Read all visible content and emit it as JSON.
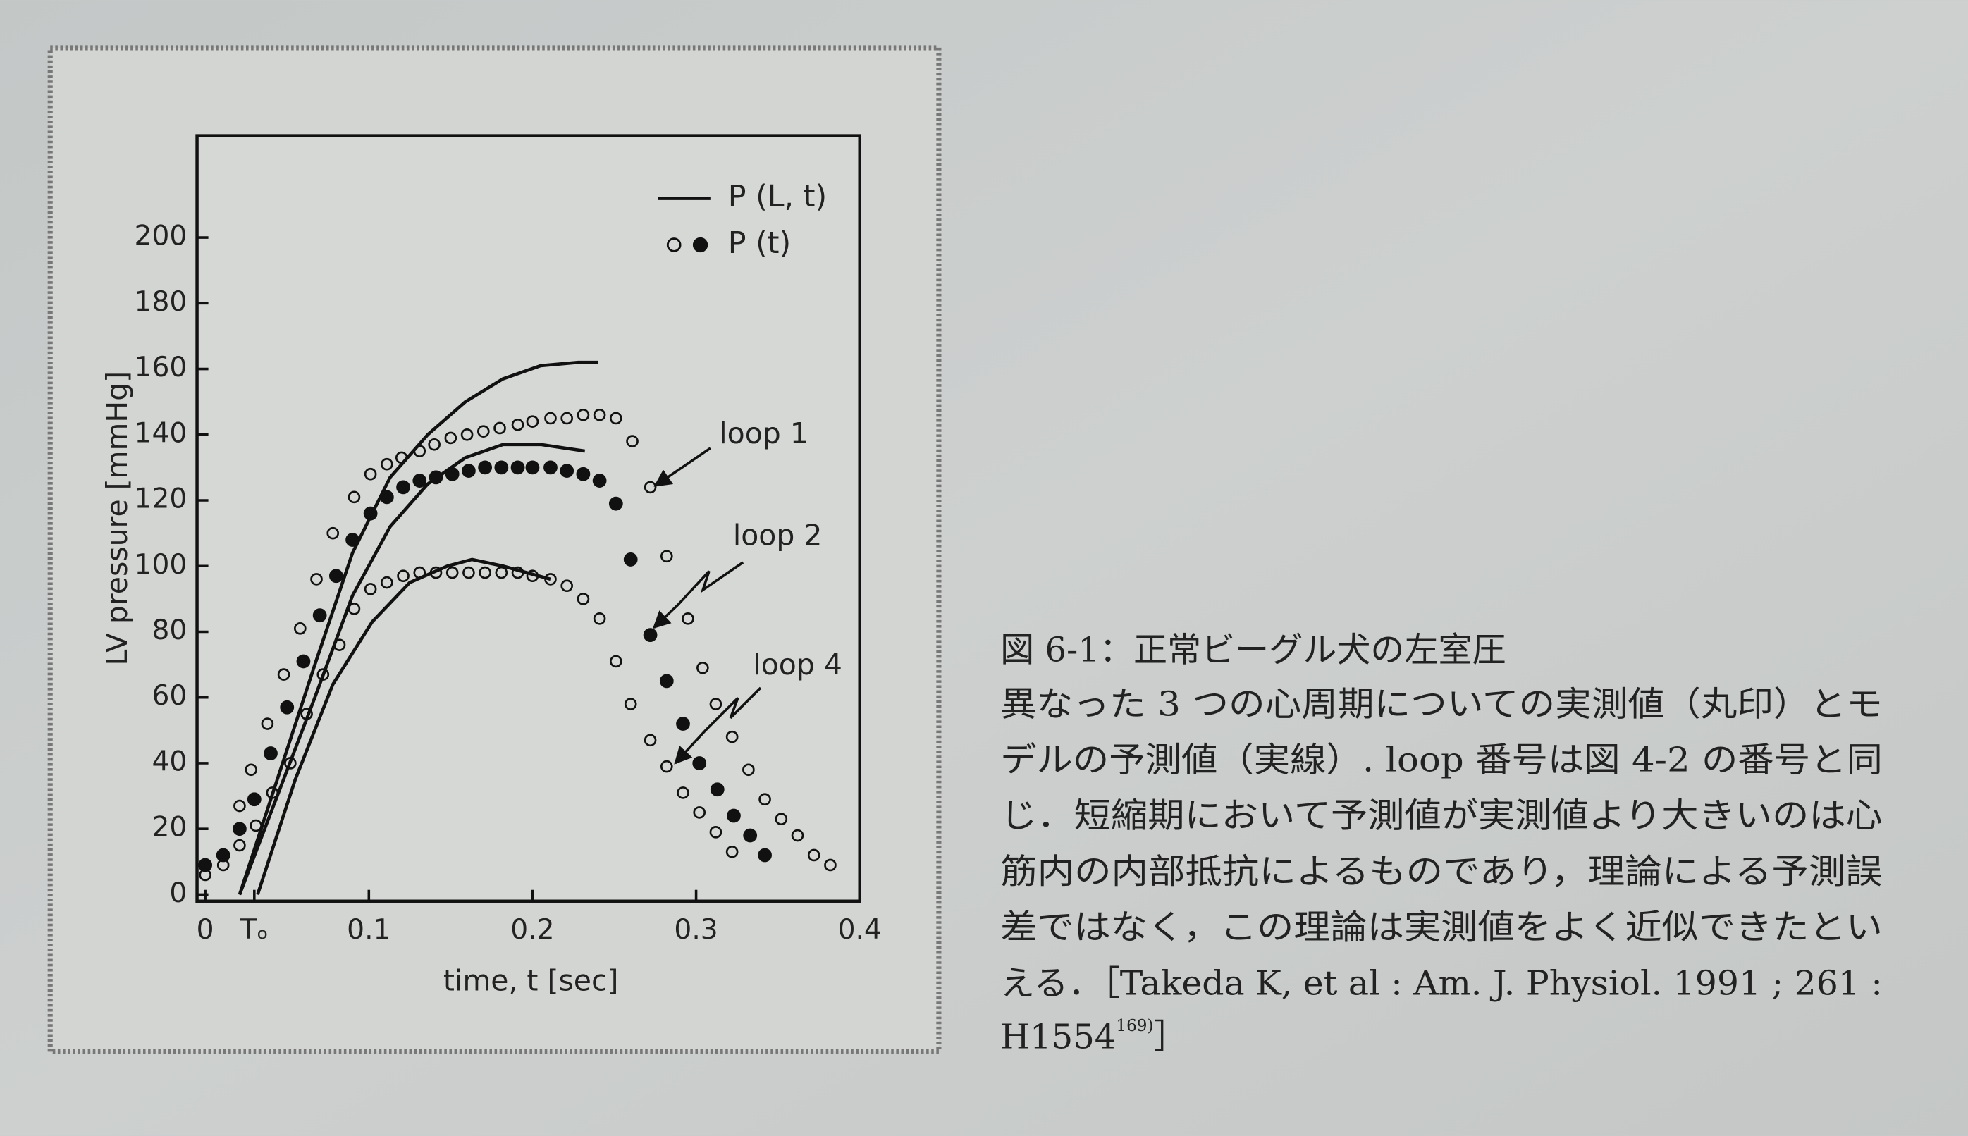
{
  "chart_data": {
    "type": "line-scatter",
    "y_label": "LV pressure [mmHg]",
    "x_label": "time, t [sec]",
    "xlim": [
      -0.005,
      0.4
    ],
    "ylim": [
      -2,
      231
    ],
    "xticks": [
      0,
      {
        "value": 0.03,
        "label": "Tₒ"
      },
      0.1,
      0.2,
      0.3,
      0.4
    ],
    "yticks": [
      0,
      20,
      40,
      60,
      80,
      100,
      120,
      140,
      160,
      180,
      200
    ],
    "color": "#111111",
    "legend": [
      {
        "label": "P (L, t)",
        "marker": "line"
      },
      {
        "label": "P (t)",
        "marker": "circles"
      }
    ],
    "annotations": [
      "loop 1",
      "loop 2",
      "loop 4"
    ],
    "lines": [
      {
        "x": [
          0.021,
          0.044,
          0.067,
          0.09,
          0.113,
          0.136,
          0.159,
          0.182,
          0.205,
          0.228,
          0.24
        ],
        "values": [
          0,
          35,
          70,
          104,
          127,
          140,
          150,
          157,
          161,
          162,
          162
        ]
      },
      {
        "x": [
          0.021,
          0.044,
          0.067,
          0.09,
          0.113,
          0.136,
          0.159,
          0.182,
          0.205,
          0.232
        ],
        "values": [
          0,
          30,
          60,
          91,
          112,
          125,
          133,
          137,
          137,
          135
        ]
      },
      {
        "x": [
          0.032,
          0.055,
          0.078,
          0.102,
          0.125,
          0.148,
          0.163,
          0.182,
          0.211
        ],
        "values": [
          0,
          35,
          64,
          83,
          95,
          100,
          102,
          100,
          96
        ]
      }
    ],
    "points": [
      {
        "style": "open",
        "x": [
          0.021,
          0.028,
          0.038,
          0.048,
          0.058,
          0.068,
          0.078,
          0.091,
          0.101,
          0.111,
          0.12,
          0.131,
          0.14,
          0.15,
          0.16,
          0.17,
          0.18,
          0.191,
          0.2,
          0.211,
          0.221,
          0.231,
          0.241,
          0.251,
          0.261,
          0.272,
          0.282,
          0.295,
          0.304,
          0.312,
          0.322,
          0.332,
          0.342,
          0.352,
          0.362,
          0.372,
          0.382
        ],
        "values": [
          27,
          38,
          52,
          67,
          81,
          96,
          110,
          121,
          128,
          131,
          133,
          135,
          137,
          139,
          140,
          141,
          142,
          143,
          144,
          145,
          145,
          146,
          146,
          145,
          138,
          124,
          103,
          84,
          69,
          58,
          48,
          38,
          29,
          23,
          18,
          12,
          9
        ]
      },
      {
        "style": "filled",
        "x": [
          0,
          0.011,
          0.021,
          0.03,
          0.04,
          0.05,
          0.06,
          0.07,
          0.08,
          0.09,
          0.101,
          0.111,
          0.121,
          0.131,
          0.141,
          0.151,
          0.161,
          0.171,
          0.181,
          0.191,
          0.2,
          0.211,
          0.221,
          0.231,
          0.241,
          0.251,
          0.26,
          0.272,
          0.282,
          0.292,
          0.302,
          0.313,
          0.323,
          0.333,
          0.342
        ],
        "values": [
          9,
          12,
          20,
          29,
          43,
          57,
          71,
          85,
          97,
          108,
          116,
          121,
          124,
          126,
          127,
          128,
          129,
          130,
          130,
          130,
          130,
          130,
          129,
          128,
          126,
          119,
          102,
          79,
          65,
          52,
          40,
          32,
          24,
          18,
          12
        ]
      },
      {
        "style": "open",
        "x": [
          0,
          0.011,
          0.021,
          0.031,
          0.041,
          0.052,
          0.062,
          0.072,
          0.082,
          0.091,
          0.101,
          0.111,
          0.121,
          0.131,
          0.141,
          0.151,
          0.161,
          0.171,
          0.181,
          0.191,
          0.2,
          0.211,
          0.221,
          0.231,
          0.241,
          0.251,
          0.26,
          0.272,
          0.282,
          0.292,
          0.302,
          0.312,
          0.322
        ],
        "values": [
          6,
          9,
          15,
          21,
          31,
          40,
          55,
          67,
          76,
          87,
          93,
          95,
          97,
          98,
          98,
          98,
          98,
          98,
          98,
          98,
          97,
          96,
          94,
          90,
          84,
          71,
          58,
          47,
          39,
          31,
          25,
          19,
          13
        ]
      }
    ]
  },
  "caption": {
    "title": "図 6-1：正常ビーグル犬の左室圧",
    "lines": [
      "異なった 3 つの心周期についての実測値（丸印）とモ",
      "デルの予測値（実線）. loop 番号は図 4-2 の番号と同",
      "じ．短縮期において予測値が実測値より大きいのは心",
      "筋内の内部抵抗によるものであり，理論による予測誤",
      "差ではなく，この理論は実測値をよく近似できたとい",
      "える．［Takeda K, et al : Am. J. Physiol. 1991 ; 261 :"
    ],
    "last_line": {
      "text": "H1554",
      "sup": "169)",
      "close": "］"
    }
  }
}
